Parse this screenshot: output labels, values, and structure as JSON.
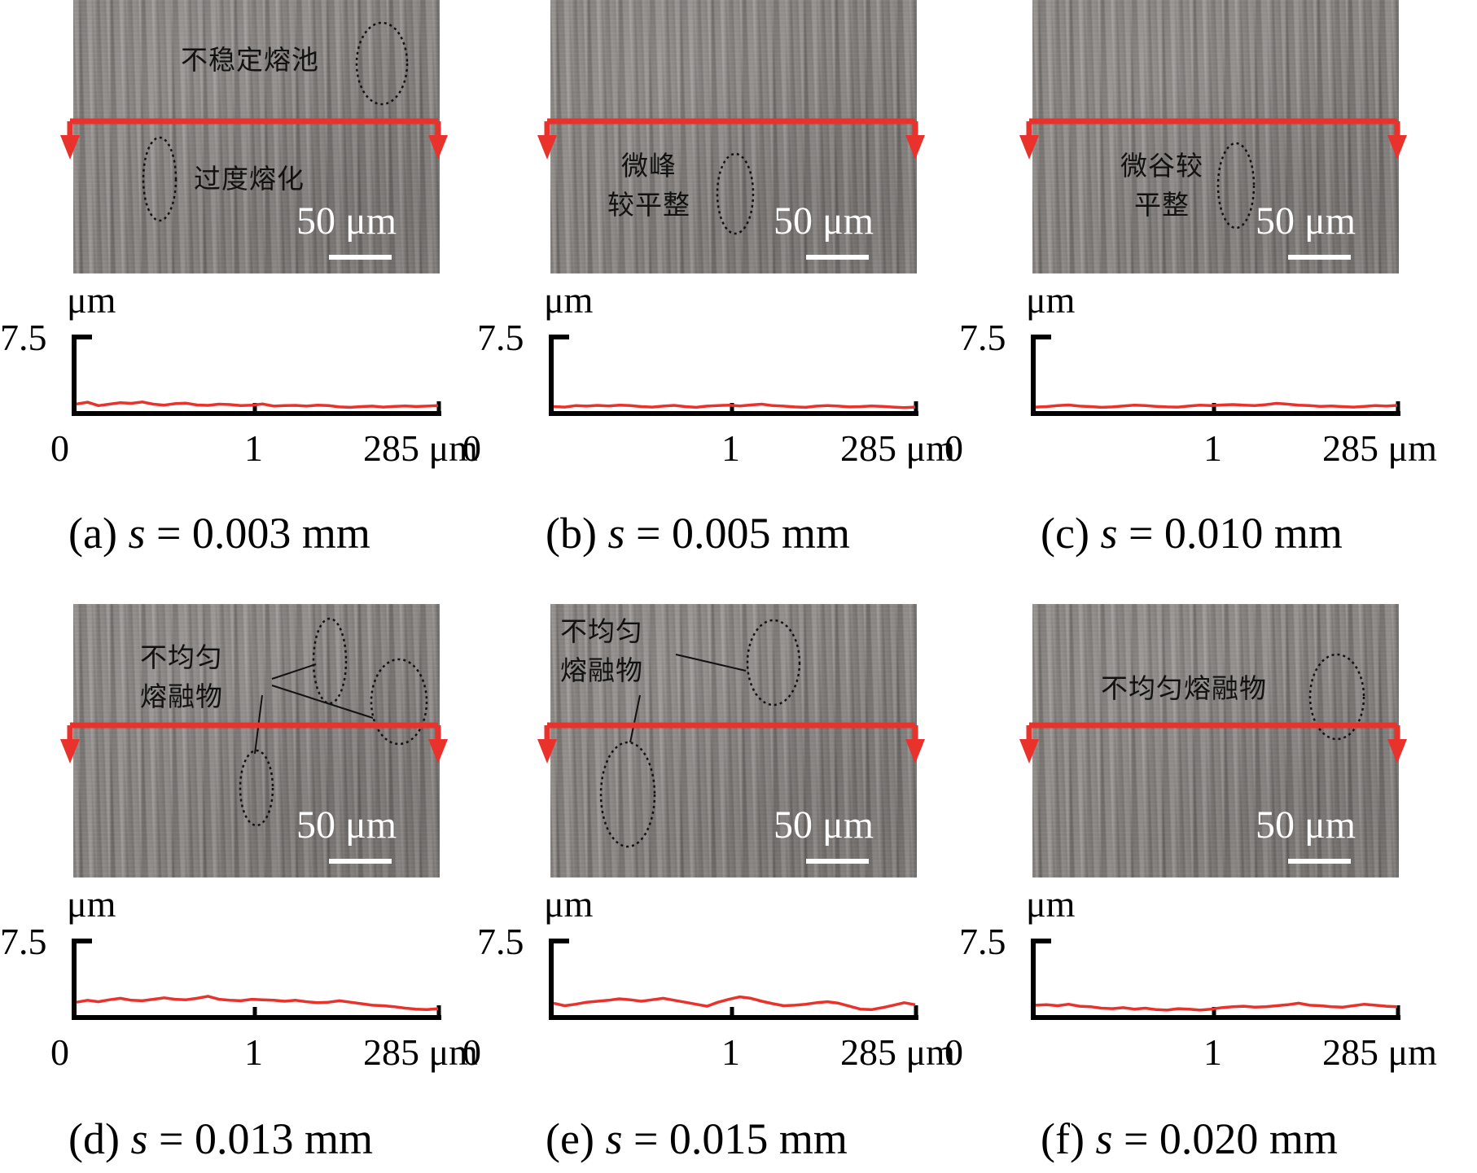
{
  "scale_bar_label": "50 μm",
  "y_axis_unit": "μm",
  "y_axis_max_label": "7.5",
  "x_axis_ticks": [
    "0",
    "1",
    "285 μm"
  ],
  "colors": {
    "profile": "#e8322b",
    "section_line": "#e8322b",
    "scale_bar": "#ffffff"
  },
  "panels": [
    {
      "id": "a",
      "caption": {
        "prefix": "(a) ",
        "symbol": "s",
        "rest": " = 0.003 mm"
      },
      "annotations": [
        {
          "text": "不稳定熔池"
        },
        {
          "text": "过度熔化"
        }
      ],
      "profile": [
        0.72,
        0.9,
        0.55,
        0.7,
        0.85,
        0.78,
        0.92,
        0.7,
        0.6,
        0.75,
        0.8,
        0.62,
        0.58,
        0.7,
        0.66,
        0.55,
        0.6,
        0.72,
        0.5,
        0.55,
        0.58,
        0.5,
        0.6,
        0.55,
        0.42,
        0.38,
        0.45,
        0.5,
        0.4,
        0.48,
        0.52,
        0.46,
        0.5,
        0.55
      ]
    },
    {
      "id": "b",
      "caption": {
        "prefix": "(b) ",
        "symbol": "s",
        "rest": " = 0.005 mm"
      },
      "annotations": [
        {
          "text": "微峰\n较平整"
        }
      ],
      "profile": [
        0.45,
        0.4,
        0.55,
        0.5,
        0.58,
        0.52,
        0.6,
        0.55,
        0.45,
        0.4,
        0.5,
        0.58,
        0.45,
        0.38,
        0.5,
        0.55,
        0.6,
        0.52,
        0.62,
        0.7,
        0.55,
        0.5,
        0.42,
        0.38,
        0.5,
        0.56,
        0.5,
        0.42,
        0.45,
        0.52,
        0.48,
        0.4,
        0.35,
        0.4
      ]
    },
    {
      "id": "c",
      "caption": {
        "prefix": "(c) ",
        "symbol": "s",
        "rest": " = 0.010 mm"
      },
      "annotations": [
        {
          "text": "微谷较\n平整"
        }
      ],
      "profile": [
        0.4,
        0.45,
        0.55,
        0.62,
        0.5,
        0.45,
        0.38,
        0.42,
        0.52,
        0.6,
        0.55,
        0.48,
        0.42,
        0.4,
        0.52,
        0.6,
        0.55,
        0.62,
        0.66,
        0.6,
        0.55,
        0.65,
        0.78,
        0.7,
        0.6,
        0.55,
        0.48,
        0.52,
        0.45,
        0.4,
        0.48,
        0.55,
        0.5,
        0.58
      ]
    },
    {
      "id": "d",
      "caption": {
        "prefix": "(d) ",
        "symbol": "s",
        "rest": " = 0.013 mm"
      },
      "annotations": [
        {
          "text": "不均匀\n熔融物"
        }
      ],
      "profile": [
        1.3,
        1.5,
        1.35,
        1.55,
        1.7,
        1.5,
        1.45,
        1.6,
        1.75,
        1.6,
        1.55,
        1.7,
        1.9,
        1.6,
        1.5,
        1.45,
        1.6,
        1.55,
        1.5,
        1.4,
        1.5,
        1.35,
        1.25,
        1.3,
        1.45,
        1.3,
        1.15,
        1.0,
        0.95,
        0.85,
        0.7,
        0.6,
        0.55,
        0.65
      ]
    },
    {
      "id": "e",
      "caption": {
        "prefix": "(e) ",
        "symbol": "s",
        "rest": " = 0.015 mm"
      },
      "annotations": [
        {
          "text": "不均匀\n熔融物"
        }
      ],
      "profile": [
        1.2,
        0.95,
        1.1,
        1.3,
        1.4,
        1.5,
        1.65,
        1.55,
        1.4,
        1.55,
        1.7,
        1.5,
        1.3,
        1.1,
        0.9,
        1.3,
        1.6,
        1.85,
        1.7,
        1.4,
        1.15,
        0.95,
        1.0,
        1.1,
        1.25,
        1.35,
        1.2,
        0.9,
        0.6,
        0.55,
        0.75,
        1.0,
        1.25,
        1.05
      ]
    },
    {
      "id": "f",
      "caption": {
        "prefix": "(f) ",
        "symbol": "s",
        "rest": " = 0.020 mm"
      },
      "annotations": [
        {
          "text": "不均匀熔融物"
        }
      ],
      "profile": [
        1.0,
        1.05,
        0.95,
        1.1,
        0.9,
        0.85,
        0.7,
        0.65,
        0.75,
        0.6,
        0.7,
        0.55,
        0.5,
        0.65,
        0.6,
        0.5,
        0.6,
        0.75,
        0.85,
        0.9,
        0.8,
        0.85,
        0.95,
        1.05,
        1.2,
        1.0,
        0.95,
        0.85,
        0.8,
        0.95,
        1.1,
        1.0,
        0.9,
        0.85
      ]
    }
  ]
}
